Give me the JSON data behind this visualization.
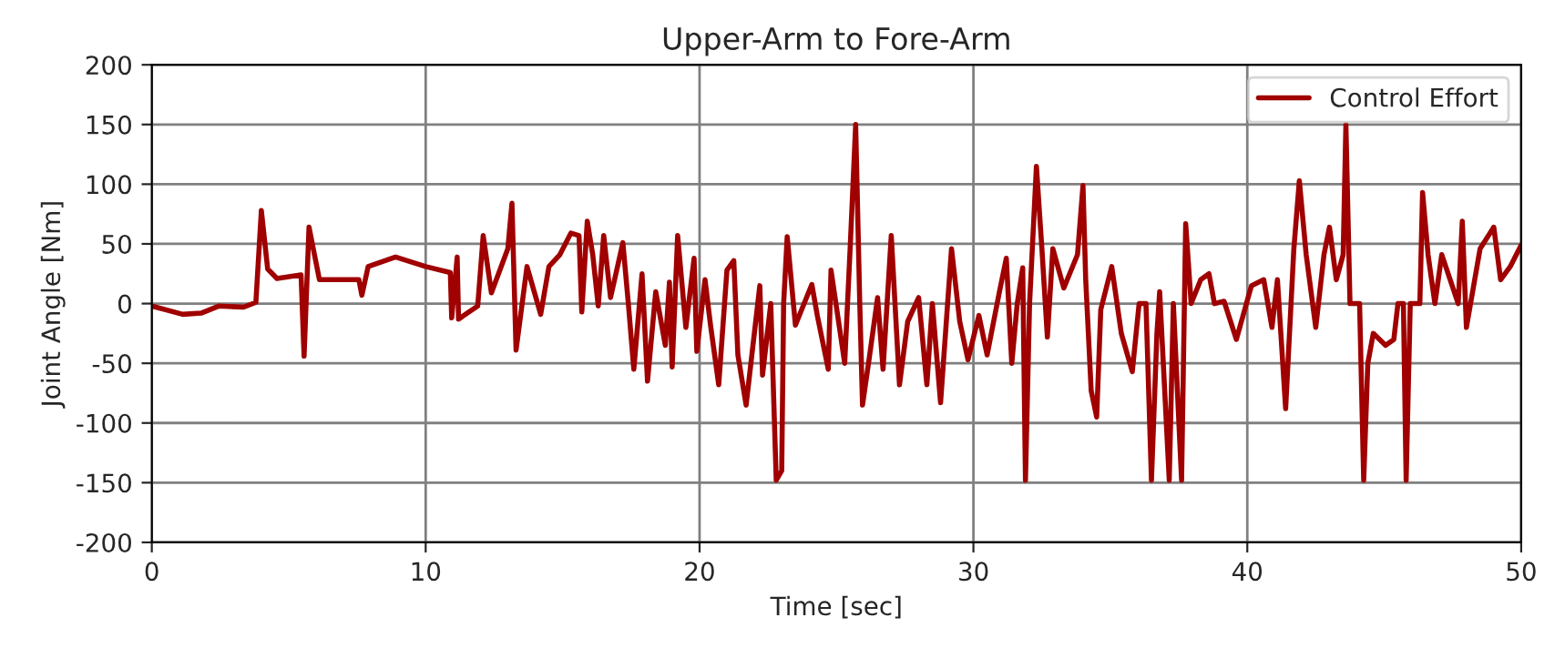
{
  "chart_data": {
    "type": "line",
    "title": "Upper-Arm to Fore-Arm",
    "xlabel": "Time [sec]",
    "ylabel": "Joint Angle [Nm]",
    "xlim": [
      0,
      50
    ],
    "xticks": [
      0,
      10,
      20,
      30,
      40,
      50
    ],
    "ylim": [
      -200,
      200
    ],
    "yticks": [
      -200,
      -150,
      -100,
      -50,
      0,
      50,
      100,
      150,
      200
    ],
    "grid": true,
    "legend": "top right",
    "line_style": "solid",
    "marker": "none",
    "series": [
      {
        "name": "Control Effort",
        "color": "#a00000",
        "x": [
          0,
          1.13,
          1.8,
          2.46,
          3.35,
          3.8,
          4.0,
          4.23,
          4.57,
          5.45,
          5.56,
          5.74,
          6.12,
          7.56,
          7.67,
          7.9,
          8.9,
          10,
          10.9,
          10.95,
          11.15,
          11.2,
          11.9,
          12.1,
          12.4,
          13.0,
          13.15,
          13.3,
          13.7,
          14.2,
          14.5,
          14.9,
          15.3,
          15.6,
          15.7,
          15.9,
          16.1,
          16.3,
          16.5,
          16.75,
          17.2,
          17.4,
          17.6,
          17.9,
          18.1,
          18.4,
          18.75,
          18.9,
          19.0,
          19.2,
          19.5,
          19.8,
          19.9,
          20.2,
          20.4,
          20.7,
          21.0,
          21.25,
          21.4,
          21.7,
          22.2,
          22.3,
          22.6,
          22.8,
          23.0,
          23.07,
          23.2,
          23.5,
          24.1,
          24.3,
          24.7,
          24.8,
          25.3,
          25.5,
          25.7,
          25.85,
          25.95,
          26.2,
          26.5,
          26.7,
          27.0,
          27.3,
          27.6,
          28.0,
          28.3,
          28.5,
          28.8,
          29.2,
          29.5,
          29.8,
          30.2,
          30.5,
          30.95,
          31.2,
          31.4,
          31.6,
          31.8,
          31.9,
          32.05,
          32.3,
          32.5,
          32.7,
          32.9,
          33.3,
          33.8,
          34.0,
          34.1,
          34.3,
          34.5,
          34.65,
          35.05,
          35.4,
          35.8,
          36.05,
          36.3,
          36.5,
          36.7,
          36.8,
          37.15,
          37.3,
          37.6,
          37.75,
          37.95,
          38.3,
          38.6,
          38.8,
          39.15,
          39.6,
          40.15,
          40.6,
          40.9,
          41.1,
          41.4,
          41.7,
          41.9,
          42.15,
          42.5,
          42.8,
          43.0,
          43.25,
          43.5,
          43.6,
          43.75,
          44.1,
          44.25,
          44.4,
          44.6,
          45.05,
          45.35,
          45.5,
          45.7,
          45.8,
          45.95,
          46.3,
          46.4,
          46.6,
          46.85,
          47.1,
          47.7,
          47.85,
          48.0,
          48.5,
          49.0,
          49.25,
          49.6,
          50.0
        ],
        "values": [
          -2,
          -9,
          -8,
          -2,
          -3,
          1,
          78,
          29,
          21,
          24,
          -44,
          64,
          20,
          20,
          7,
          31,
          39,
          31,
          26,
          -12,
          39,
          -13,
          -2,
          57,
          9,
          46,
          84,
          -39,
          31,
          -9,
          31,
          41,
          59,
          57,
          -7,
          69,
          41,
          -2,
          57,
          5,
          51,
          0,
          -55,
          25,
          -65,
          10,
          -35,
          18,
          -53,
          57,
          -20,
          38,
          -40,
          20,
          -18,
          -68,
          28,
          36,
          -43,
          -85,
          15,
          -60,
          0,
          -148,
          -140,
          0,
          56,
          -18,
          16,
          -10,
          -55,
          28,
          -50,
          47,
          150,
          0,
          -85,
          -45,
          5,
          -55,
          57,
          -68,
          -15,
          5,
          -68,
          0,
          -83,
          46,
          -15,
          -47,
          -10,
          -43,
          10,
          38,
          -50,
          0,
          30,
          -148,
          0,
          115,
          46,
          -28,
          46,
          13,
          41,
          99,
          20,
          -73,
          -95,
          -5,
          31,
          -25,
          -57,
          0,
          0,
          -148,
          -25,
          10,
          -148,
          0,
          -148,
          67,
          0,
          20,
          25,
          0,
          2,
          -30,
          15,
          20,
          -20,
          20,
          -88,
          46,
          103,
          41,
          -20,
          41,
          64,
          20,
          41,
          150,
          0,
          0,
          -148,
          -50,
          -25,
          -35,
          -30,
          0,
          0,
          -148,
          0,
          0,
          93,
          41,
          0,
          41,
          0,
          69,
          -20,
          46,
          64,
          20,
          31,
          49
        ]
      }
    ]
  }
}
